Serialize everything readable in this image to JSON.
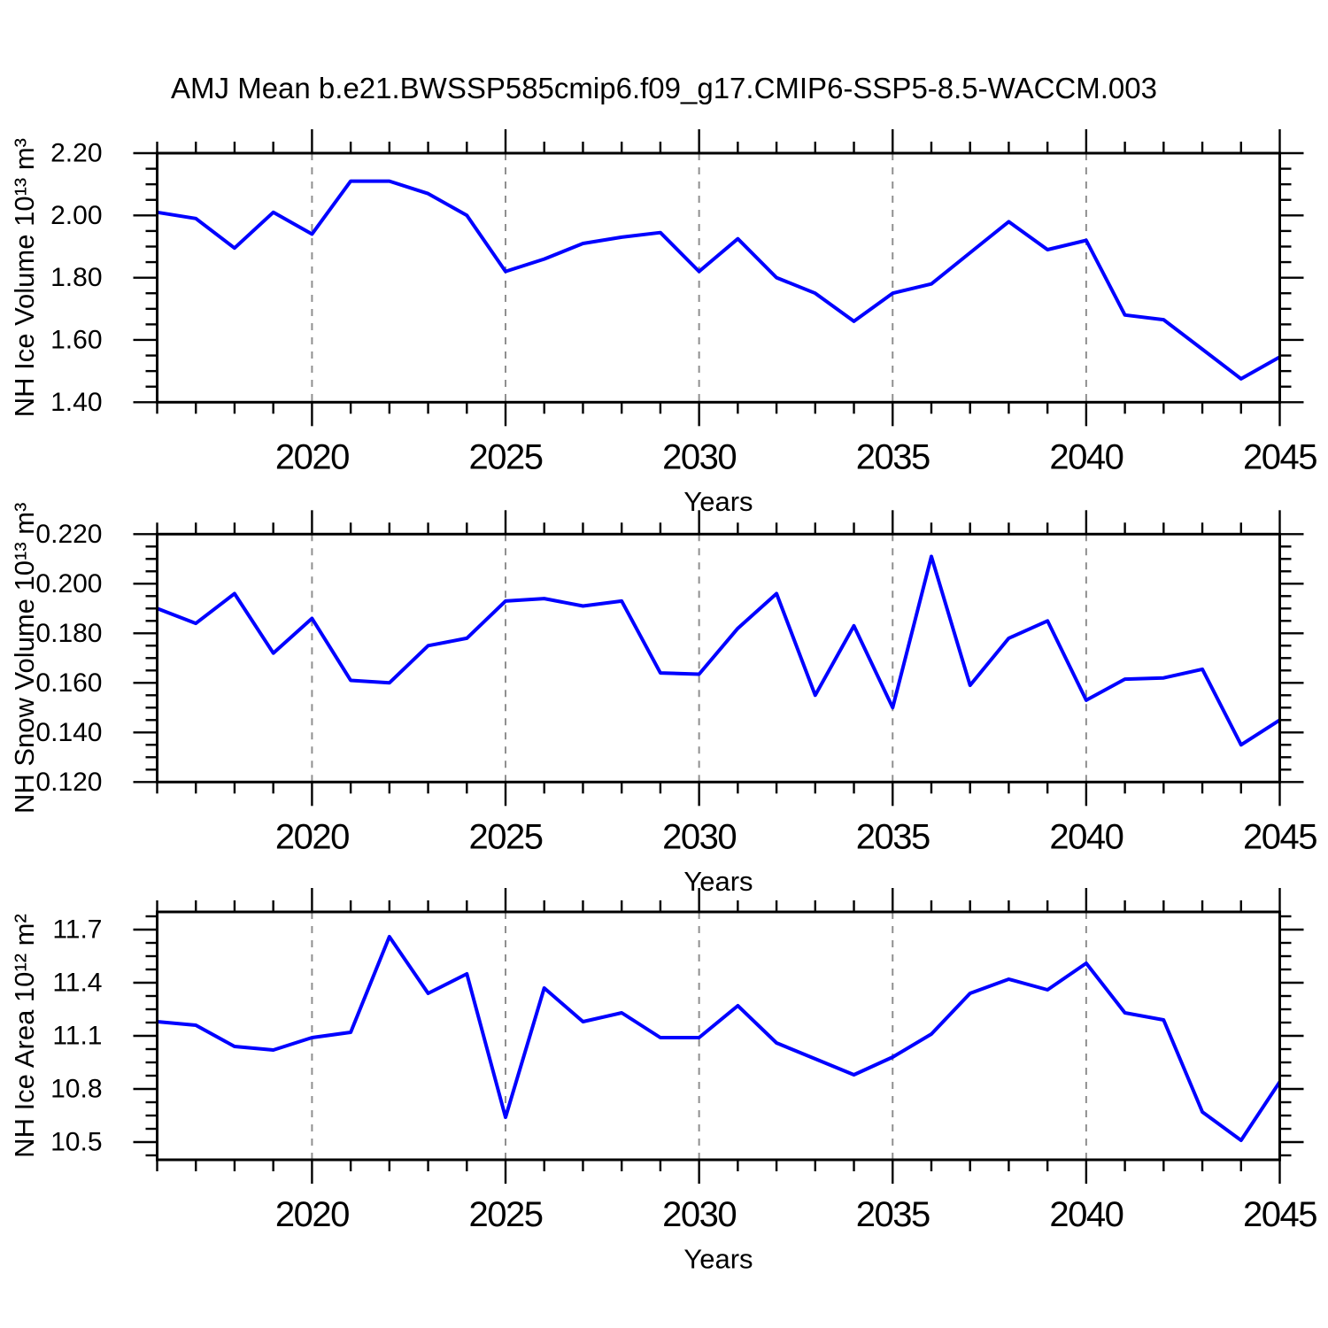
{
  "title": "AMJ Mean b.e21.BWSSP585cmip6.f09_g17.CMIP6-SSP5-8.5-WACCM.003",
  "colors": {
    "line": "#0000ff",
    "frame": "#000000",
    "gridline": "#8f8f8f",
    "text": "#000000",
    "background": "#ffffff"
  },
  "x_axis": {
    "label": "Years",
    "xlim": [
      2016,
      2045
    ],
    "major_ticks": [
      2020,
      2025,
      2030,
      2035,
      2040,
      2045
    ],
    "minor_step": 1,
    "gridlines": [
      2020,
      2025,
      2030,
      2035,
      2040
    ]
  },
  "chart_data": [
    {
      "type": "line",
      "name": "nh-ice-volume",
      "ylabel": "NH Ice Volume 10¹³ m³",
      "xlabel": "Years",
      "ylim": [
        1.4,
        2.2
      ],
      "yticks": [
        1.4,
        1.6,
        1.8,
        2.0,
        2.2
      ],
      "ytick_decimals": 2,
      "yminor_step": 0.05,
      "legend": "none",
      "grid": "vertical-dashed",
      "x": [
        2016,
        2017,
        2018,
        2019,
        2020,
        2021,
        2022,
        2023,
        2024,
        2025,
        2026,
        2027,
        2028,
        2029,
        2030,
        2031,
        2032,
        2033,
        2034,
        2035,
        2036,
        2037,
        2038,
        2039,
        2040,
        2041,
        2042,
        2043,
        2044,
        2045
      ],
      "values": [
        2.01,
        1.99,
        1.895,
        2.01,
        1.94,
        2.11,
        2.11,
        2.07,
        2.0,
        1.82,
        1.86,
        1.91,
        1.93,
        1.945,
        1.82,
        1.925,
        1.8,
        1.75,
        1.66,
        1.75,
        1.78,
        1.88,
        1.98,
        1.89,
        1.92,
        1.68,
        1.665,
        1.57,
        1.475,
        1.545
      ]
    },
    {
      "type": "line",
      "name": "nh-snow-volume",
      "ylabel": "NH Snow Volume 10¹³ m³",
      "xlabel": "Years",
      "ylim": [
        0.12,
        0.22
      ],
      "yticks": [
        0.12,
        0.14,
        0.16,
        0.18,
        0.2,
        0.22
      ],
      "ytick_decimals": 3,
      "yminor_step": 0.005,
      "legend": "none",
      "grid": "vertical-dashed",
      "x": [
        2016,
        2017,
        2018,
        2019,
        2020,
        2021,
        2022,
        2023,
        2024,
        2025,
        2026,
        2027,
        2028,
        2029,
        2030,
        2031,
        2032,
        2033,
        2034,
        2035,
        2036,
        2037,
        2038,
        2039,
        2040,
        2041,
        2042,
        2043,
        2044,
        2045
      ],
      "values": [
        0.19,
        0.184,
        0.196,
        0.172,
        0.186,
        0.161,
        0.16,
        0.175,
        0.178,
        0.193,
        0.194,
        0.191,
        0.193,
        0.164,
        0.1635,
        0.182,
        0.196,
        0.155,
        0.183,
        0.15,
        0.211,
        0.159,
        0.178,
        0.185,
        0.153,
        0.1615,
        0.162,
        0.1655,
        0.135,
        0.145
      ]
    },
    {
      "type": "line",
      "name": "nh-ice-area",
      "ylabel": "NH Ice Area 10¹² m²",
      "xlabel": "Years",
      "ylim": [
        10.4,
        11.8
      ],
      "yticks": [
        10.5,
        10.8,
        11.1,
        11.4,
        11.7
      ],
      "ytick_decimals": 1,
      "yminor_step": 0.075,
      "legend": "none",
      "grid": "vertical-dashed",
      "x": [
        2016,
        2017,
        2018,
        2019,
        2020,
        2021,
        2022,
        2023,
        2024,
        2025,
        2026,
        2027,
        2028,
        2029,
        2030,
        2031,
        2032,
        2033,
        2034,
        2035,
        2036,
        2037,
        2038,
        2039,
        2040,
        2041,
        2042,
        2043,
        2044,
        2045
      ],
      "values": [
        11.18,
        11.16,
        11.04,
        11.02,
        11.09,
        11.12,
        11.66,
        11.34,
        11.45,
        10.64,
        11.37,
        11.18,
        11.23,
        11.09,
        11.09,
        11.27,
        11.06,
        10.97,
        10.88,
        10.98,
        11.11,
        11.34,
        11.42,
        11.36,
        11.51,
        11.23,
        11.19,
        10.67,
        10.51,
        10.84
      ]
    }
  ]
}
